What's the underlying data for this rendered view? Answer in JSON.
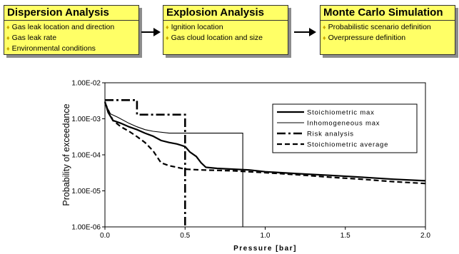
{
  "flow": {
    "boxes": [
      {
        "title": "Dispersion Analysis",
        "items": [
          "Gas leak location and direction",
          "Gas leak rate",
          "Environmental conditions"
        ]
      },
      {
        "title": "Explosion Analysis",
        "items": [
          "Ignition location",
          "Gas cloud location and size"
        ]
      },
      {
        "title": "Monte Carlo Simulation",
        "items": [
          "Probabilistic scenario definition",
          "Overpressure definition"
        ]
      }
    ],
    "box_color": "#ffff66"
  },
  "chart_data": {
    "type": "line",
    "xlabel": "Pressure [bar]",
    "ylabel": "Probability of exceedance",
    "xlim": [
      0,
      2
    ],
    "ylim": [
      1e-06,
      0.01
    ],
    "yscale": "log",
    "x_ticks": [
      "0.0",
      "0.5",
      "1.0",
      "1.5",
      "2.0"
    ],
    "y_ticks": [
      "1.00E-06",
      "1.00E-05",
      "1.00E-04",
      "1.00E-03",
      "1.00E-02"
    ],
    "legend_position": "top-right",
    "series": [
      {
        "name": "Stoichiometric max",
        "style": "solid-thick",
        "points": [
          [
            0,
            0.003
          ],
          [
            0.02,
            0.0015
          ],
          [
            0.05,
            0.0009
          ],
          [
            0.1,
            0.00075
          ],
          [
            0.15,
            0.0006
          ],
          [
            0.2,
            0.0005
          ],
          [
            0.25,
            0.0004
          ],
          [
            0.3,
            0.00033
          ],
          [
            0.35,
            0.00025
          ],
          [
            0.4,
            0.00022
          ],
          [
            0.45,
            0.0002
          ],
          [
            0.5,
            0.00017
          ],
          [
            0.53,
            0.00012
          ],
          [
            0.57,
            9e-05
          ],
          [
            0.6,
            6e-05
          ],
          [
            0.63,
            4.5e-05
          ],
          [
            0.7,
            4.2e-05
          ],
          [
            0.8,
            4e-05
          ],
          [
            0.9,
            3.8e-05
          ],
          [
            1.0,
            3.4e-05
          ],
          [
            1.2,
            3e-05
          ],
          [
            1.4,
            2.7e-05
          ],
          [
            1.6,
            2.4e-05
          ],
          [
            1.8,
            2.1e-05
          ],
          [
            2.0,
            1.9e-05
          ]
        ]
      },
      {
        "name": "Inhomogeneous max",
        "style": "solid-thin",
        "points": [
          [
            0,
            0.003
          ],
          [
            0.03,
            0.0014
          ],
          [
            0.08,
            0.0011
          ],
          [
            0.15,
            0.00075
          ],
          [
            0.2,
            0.0006
          ],
          [
            0.25,
            0.0005
          ],
          [
            0.3,
            0.00045
          ],
          [
            0.4,
            0.0004
          ],
          [
            0.6,
            0.0004
          ],
          [
            0.86,
            0.0004
          ],
          [
            0.86,
            1e-06
          ]
        ]
      },
      {
        "name": "Risk analysis",
        "style": "dash-dot",
        "points": [
          [
            0,
            0.0033
          ],
          [
            0.2,
            0.0033
          ],
          [
            0.2,
            0.0013
          ],
          [
            0.5,
            0.0013
          ],
          [
            0.5,
            1e-06
          ]
        ]
      },
      {
        "name": "Stoichiometric average",
        "style": "dashed",
        "points": [
          [
            0,
            0.0028
          ],
          [
            0.05,
            0.0009
          ],
          [
            0.1,
            0.0006
          ],
          [
            0.15,
            0.00045
          ],
          [
            0.2,
            0.00032
          ],
          [
            0.25,
            0.00022
          ],
          [
            0.3,
            0.00013
          ],
          [
            0.35,
            6e-05
          ],
          [
            0.4,
            5e-05
          ],
          [
            0.45,
            4.5e-05
          ],
          [
            0.5,
            4e-05
          ],
          [
            0.6,
            3.8e-05
          ],
          [
            0.8,
            3.6e-05
          ],
          [
            1.0,
            3.2e-05
          ],
          [
            1.2,
            2.8e-05
          ],
          [
            1.4,
            2.4e-05
          ],
          [
            1.6,
            2.1e-05
          ],
          [
            1.8,
            1.8e-05
          ],
          [
            2.0,
            1.6e-05
          ]
        ]
      }
    ]
  }
}
